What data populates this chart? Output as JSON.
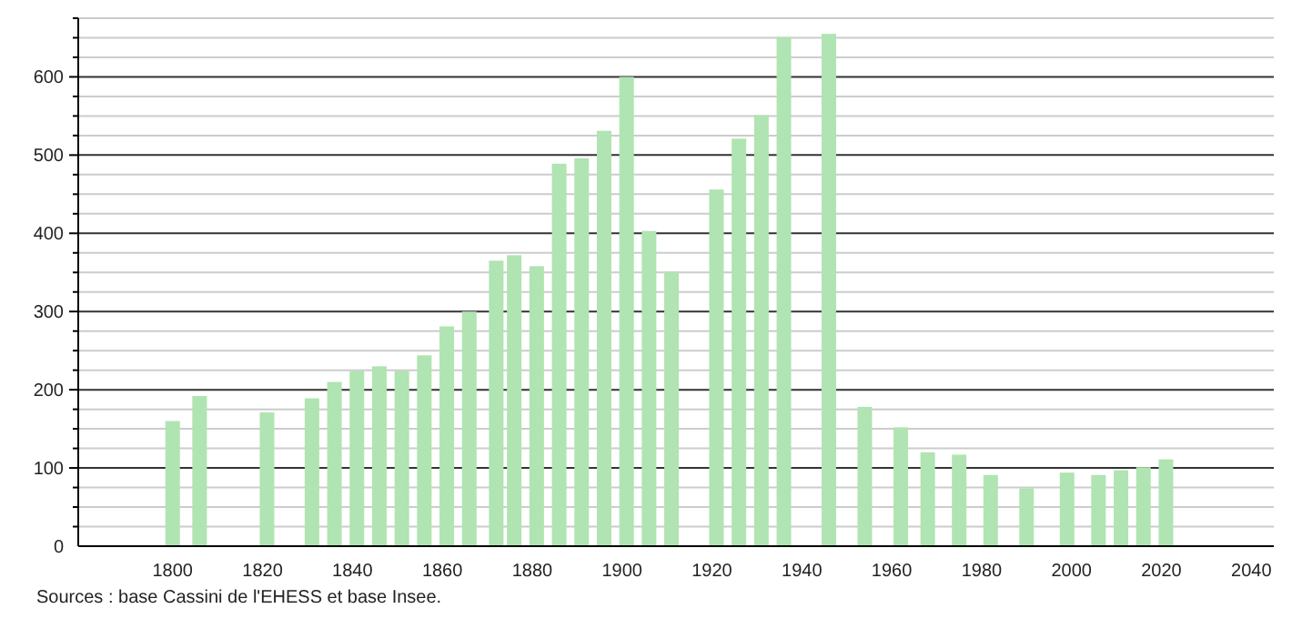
{
  "chart_data": {
    "type": "bar",
    "x": [
      1800,
      1806,
      1821,
      1831,
      1836,
      1841,
      1846,
      1851,
      1856,
      1861,
      1866,
      1872,
      1876,
      1881,
      1886,
      1891,
      1896,
      1901,
      1906,
      1911,
      1921,
      1926,
      1931,
      1936,
      1946,
      1954,
      1962,
      1968,
      1975,
      1982,
      1990,
      1999,
      2006,
      2011,
      2016,
      2021
    ],
    "values": [
      160,
      192,
      171,
      189,
      210,
      224,
      230,
      224,
      244,
      281,
      300,
      365,
      372,
      358,
      489,
      496,
      531,
      600,
      403,
      351,
      456,
      521,
      551,
      651,
      655,
      178,
      152,
      120,
      117,
      91,
      74,
      94,
      91,
      97,
      101,
      111
    ],
    "color": "#b0e4b2",
    "xlim": [
      1779,
      2045
    ],
    "xticks": [
      1800,
      1820,
      1840,
      1860,
      1880,
      1900,
      1920,
      1940,
      1960,
      1980,
      2000,
      2020,
      2040
    ],
    "ylim": [
      0,
      675
    ],
    "yticks": [
      0,
      {
        "value": 25,
        "label": null
      },
      {
        "value": 50,
        "label": null
      },
      {
        "value": 75,
        "label": null
      },
      100,
      {
        "value": 125,
        "label": null
      },
      {
        "value": 150,
        "label": null
      },
      {
        "value": 175,
        "label": null
      },
      200,
      {
        "value": 225,
        "label": null
      },
      {
        "value": 250,
        "label": null
      },
      {
        "value": 275,
        "label": null
      },
      300,
      {
        "value": 325,
        "label": null
      },
      {
        "value": 350,
        "label": null
      },
      {
        "value": 375,
        "label": null
      },
      400,
      {
        "value": 425,
        "label": null
      },
      {
        "value": 450,
        "label": null
      },
      {
        "value": 475,
        "label": null
      },
      500,
      {
        "value": 525,
        "label": null
      },
      {
        "value": 550,
        "label": null
      },
      {
        "value": 575,
        "label": null
      },
      600,
      {
        "value": 625,
        "label": null
      },
      {
        "value": 650,
        "label": null
      },
      {
        "value": 675,
        "label": null
      }
    ],
    "grid": "y",
    "annotations": [
      "Sources : base Cassini de l'EHESS et base Insee."
    ]
  }
}
